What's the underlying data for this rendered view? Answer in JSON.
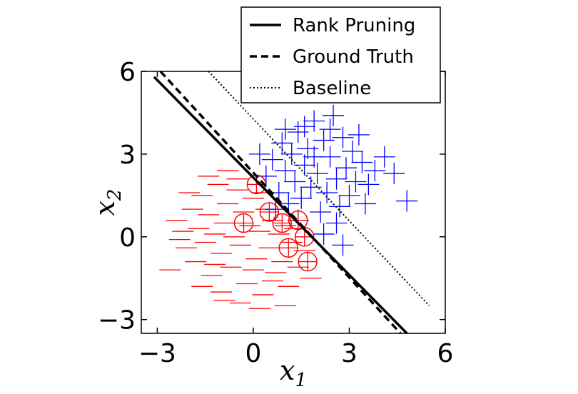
{
  "chart_data": {
    "type": "scatter",
    "title": "",
    "xlabel": {
      "base": "x",
      "sub": "1"
    },
    "ylabel": {
      "base": "x",
      "sub": "2"
    },
    "xlim": [
      -3.5,
      6.0
    ],
    "ylim": [
      -3.5,
      6.0
    ],
    "x_ticks": [
      {
        "value": -3,
        "label": "−3"
      },
      {
        "value": 0,
        "label": "0"
      },
      {
        "value": 3,
        "label": "3"
      },
      {
        "value": 6,
        "label": "6"
      }
    ],
    "y_ticks": [
      {
        "value": -3,
        "label": "−3"
      },
      {
        "value": 0,
        "label": "0"
      },
      {
        "value": 3,
        "label": "3"
      },
      {
        "value": 6,
        "label": "6"
      }
    ],
    "grid": false,
    "legend_placement": "top-right",
    "colors": {
      "negative": "#ff0000",
      "positive": "#0000ff",
      "lines": "#000000"
    },
    "lines": [
      {
        "name": "Rank Pruning",
        "style": "solid",
        "x": [
          -3.1,
          4.8
        ],
        "y": [
          5.8,
          -3.5
        ]
      },
      {
        "name": "Ground Truth",
        "style": "dashed",
        "x": [
          -2.9,
          4.6
        ],
        "y": [
          6.0,
          -3.5
        ]
      },
      {
        "name": "Baseline",
        "style": "dotted",
        "x": [
          -1.4,
          5.5
        ],
        "y": [
          6.0,
          -2.5
        ]
      }
    ],
    "series": [
      {
        "marker": "minus",
        "color": "#ff0000",
        "points": [
          [
            -2.4,
            0.6
          ],
          [
            -2.2,
            0.2
          ],
          [
            -2.1,
            -0.4
          ],
          [
            -1.9,
            1.0
          ],
          [
            -1.8,
            -0.9
          ],
          [
            -1.7,
            0.3
          ],
          [
            -1.6,
            1.5
          ],
          [
            -1.5,
            -0.2
          ],
          [
            -1.4,
            0.8
          ],
          [
            -1.3,
            -1.4
          ],
          [
            -1.2,
            0.1
          ],
          [
            -1.1,
            1.9
          ],
          [
            -1.0,
            -0.6
          ],
          [
            -0.9,
            0.5
          ],
          [
            -0.8,
            1.2
          ],
          [
            -0.7,
            -1.1
          ],
          [
            -0.6,
            0.0
          ],
          [
            -0.5,
            2.1
          ],
          [
            -0.4,
            -0.3
          ],
          [
            -0.3,
            0.9
          ],
          [
            -0.2,
            -1.7
          ],
          [
            -0.1,
            0.4
          ],
          [
            0.0,
            1.4
          ],
          [
            0.1,
            -0.8
          ],
          [
            0.2,
            0.2
          ],
          [
            0.3,
            -2.1
          ],
          [
            0.4,
            1.0
          ],
          [
            0.5,
            -0.4
          ],
          [
            0.6,
            0.6
          ],
          [
            0.7,
            -1.3
          ],
          [
            0.8,
            0.1
          ],
          [
            0.9,
            -0.9
          ],
          [
            1.0,
            0.4
          ],
          [
            1.1,
            -1.8
          ],
          [
            1.2,
            -0.2
          ],
          [
            1.3,
            0.3
          ],
          [
            1.4,
            -1.1
          ],
          [
            1.6,
            -0.5
          ],
          [
            1.8,
            -1.5
          ],
          [
            -1.0,
            -2.0
          ],
          [
            -0.4,
            -2.4
          ],
          [
            0.2,
            -2.6
          ],
          [
            1.0,
            -2.5
          ],
          [
            -2.6,
            -1.2
          ],
          [
            -2.0,
            1.6
          ],
          [
            -1.6,
            -1.8
          ],
          [
            -0.8,
            2.4
          ],
          [
            0.0,
            -1.2
          ],
          [
            -0.5,
            1.7
          ],
          [
            0.6,
            -1.6
          ],
          [
            -1.2,
            -1.0
          ],
          [
            -2.3,
            -0.1
          ],
          [
            -1.4,
            2.2
          ],
          [
            0.3,
            1.6
          ],
          [
            -0.9,
            -2.3
          ]
        ]
      },
      {
        "marker": "plus",
        "color": "#0000ff",
        "points": [
          [
            0.2,
            3.0
          ],
          [
            0.4,
            2.2
          ],
          [
            0.6,
            2.8
          ],
          [
            0.8,
            1.6
          ],
          [
            0.9,
            3.4
          ],
          [
            1.0,
            2.4
          ],
          [
            1.1,
            1.2
          ],
          [
            1.2,
            3.0
          ],
          [
            1.3,
            2.0
          ],
          [
            1.4,
            3.8
          ],
          [
            1.5,
            1.4
          ],
          [
            1.6,
            2.6
          ],
          [
            1.7,
            3.2
          ],
          [
            1.8,
            1.8
          ],
          [
            1.9,
            4.2
          ],
          [
            2.0,
            2.3
          ],
          [
            2.1,
            0.9
          ],
          [
            2.2,
            3.5
          ],
          [
            2.3,
            1.6
          ],
          [
            2.4,
            2.9
          ],
          [
            2.5,
            4.4
          ],
          [
            2.6,
            2.1
          ],
          [
            2.7,
            1.1
          ],
          [
            2.8,
            3.6
          ],
          [
            2.9,
            2.5
          ],
          [
            3.0,
            1.5
          ],
          [
            3.1,
            3.1
          ],
          [
            3.2,
            2.0
          ],
          [
            3.4,
            2.7
          ],
          [
            3.6,
            1.9
          ],
          [
            3.8,
            2.4
          ],
          [
            4.1,
            2.9
          ],
          [
            4.4,
            2.3
          ],
          [
            4.8,
            1.3
          ],
          [
            2.2,
            0.1
          ],
          [
            2.8,
            -0.3
          ],
          [
            1.0,
            3.9
          ],
          [
            1.6,
            4.0
          ],
          [
            2.4,
            3.9
          ],
          [
            3.3,
            3.7
          ],
          [
            0.7,
            1.0
          ],
          [
            1.4,
            0.6
          ],
          [
            2.6,
            0.5
          ],
          [
            3.5,
            1.2
          ],
          [
            1.9,
            2.9
          ]
        ]
      },
      {
        "marker": "circle-plus",
        "color": "#ff0000",
        "points": [
          [
            0.1,
            1.9
          ],
          [
            0.5,
            0.9
          ],
          [
            -0.3,
            0.5
          ],
          [
            0.9,
            0.5
          ],
          [
            1.4,
            0.6
          ],
          [
            1.6,
            0.0
          ],
          [
            1.1,
            -0.4
          ],
          [
            1.7,
            -0.9
          ]
        ]
      }
    ]
  }
}
